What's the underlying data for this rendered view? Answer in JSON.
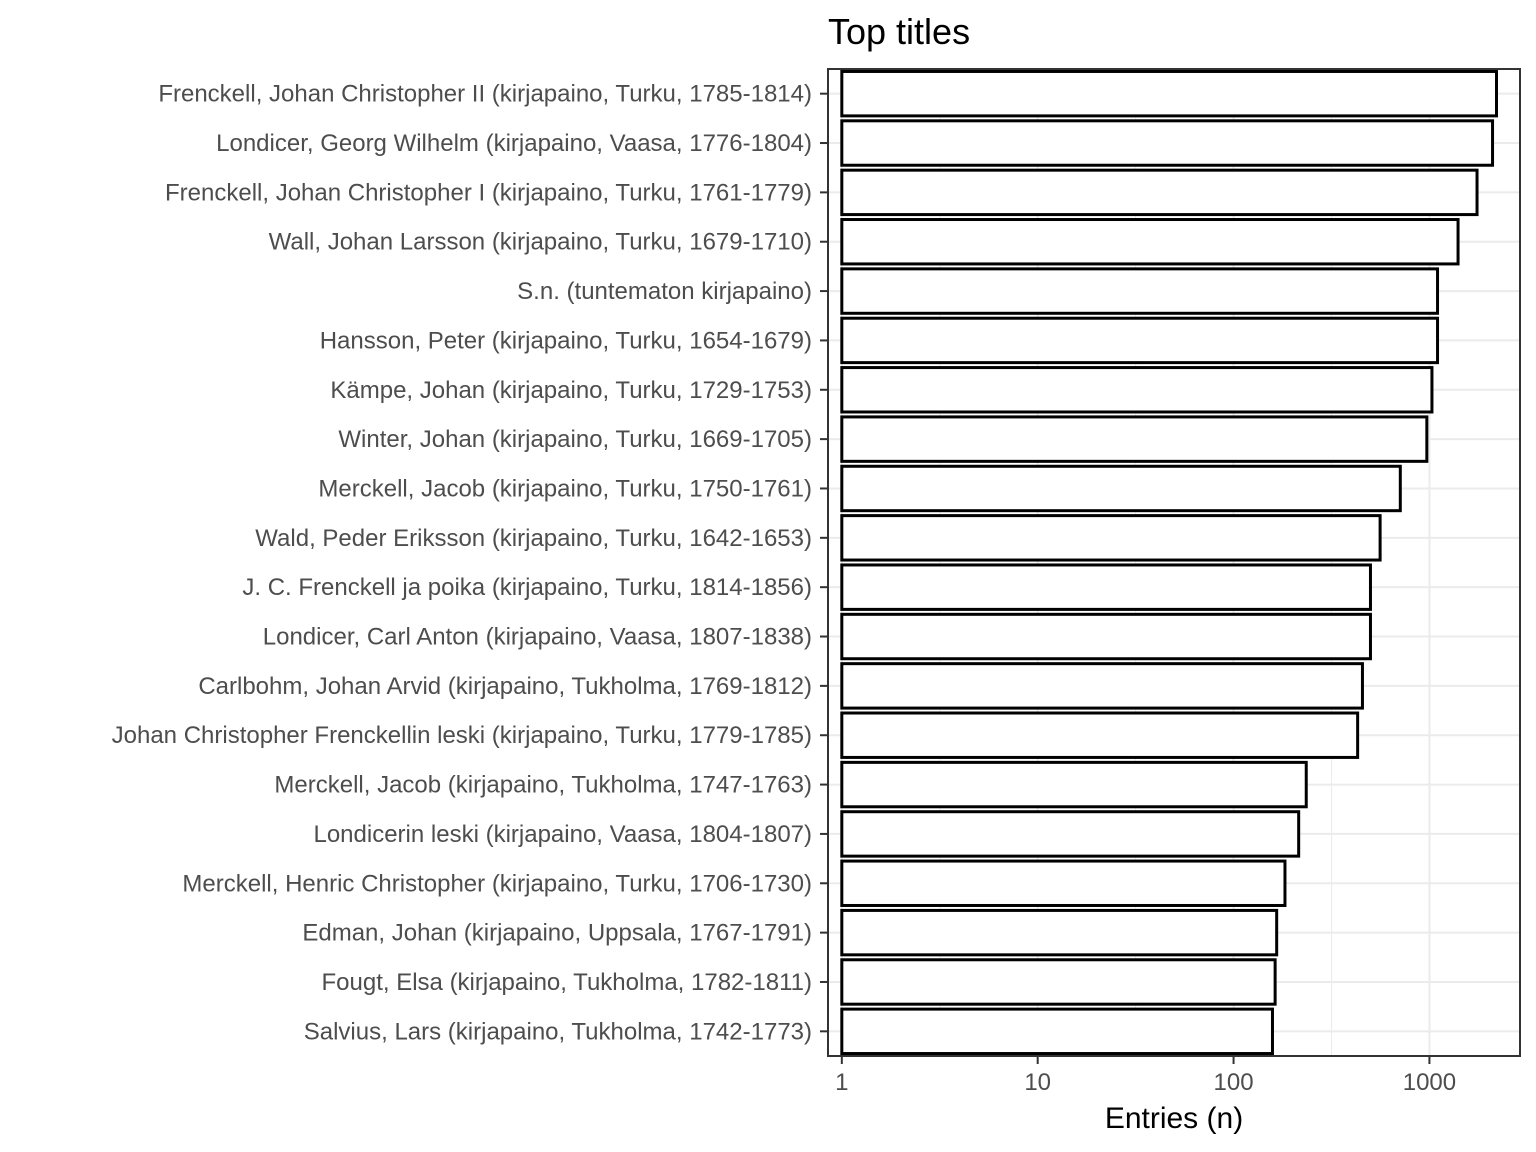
{
  "chart_data": {
    "type": "bar",
    "orientation": "horizontal",
    "title": "Top titles",
    "xlabel": "Entries (n)",
    "ylabel": "",
    "x_scale": "log10",
    "xlim": [
      0.85,
      2900
    ],
    "x_ticks": [
      1,
      10,
      100,
      1000
    ],
    "x_tick_labels": [
      "1",
      "10",
      "100",
      "1000"
    ],
    "grid": true,
    "legend": "none",
    "bar_fill": "#ffffff",
    "bar_stroke": "#000000",
    "categories": [
      "Frenckell, Johan Christopher II (kirjapaino, Turku, 1785-1814)",
      "Londicer, Georg Wilhelm (kirjapaino, Vaasa, 1776-1804)",
      "Frenckell, Johan Christopher I (kirjapaino, Turku, 1761-1779)",
      "Wall, Johan Larsson (kirjapaino, Turku, 1679-1710)",
      "S.n. (tuntematon kirjapaino)",
      "Hansson, Peter (kirjapaino, Turku, 1654-1679)",
      "Kämpe, Johan (kirjapaino, Turku, 1729-1753)",
      "Winter, Johan (kirjapaino, Turku, 1669-1705)",
      "Merckell, Jacob (kirjapaino, Turku, 1750-1761)",
      "Wald, Peder Eriksson (kirjapaino, Turku, 1642-1653)",
      "J. C. Frenckell ja poika (kirjapaino, Turku, 1814-1856)",
      "Londicer, Carl Anton (kirjapaino, Vaasa, 1807-1838)",
      "Carlbohm, Johan Arvid (kirjapaino, Tukholma, 1769-1812)",
      "Johan Christopher Frenckellin leski (kirjapaino, Turku, 1779-1785)",
      "Merckell, Jacob (kirjapaino, Tukholma, 1747-1763)",
      "Londicerin leski (kirjapaino, Vaasa, 1804-1807)",
      "Merckell, Henric Christopher (kirjapaino, Turku, 1706-1730)",
      "Edman, Johan (kirjapaino, Uppsala, 1767-1791)",
      "Fougt, Elsa (kirjapaino, Tukholma, 1782-1811)",
      "Salvius, Lars (kirjapaino, Tukholma, 1742-1773)"
    ],
    "values": [
      2200,
      2100,
      1750,
      1400,
      1100,
      1100,
      1030,
      970,
      710,
      560,
      500,
      500,
      455,
      430,
      235,
      215,
      183,
      166,
      163,
      158
    ]
  }
}
